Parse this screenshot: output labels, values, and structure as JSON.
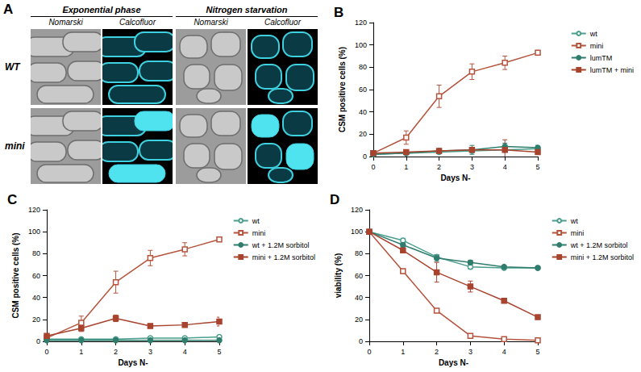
{
  "panel_a": {
    "title": "A",
    "conditions": [
      "Exponential phase",
      "Nitrogen starvation"
    ],
    "channels": [
      "Nomarski",
      "Calcofluor"
    ],
    "strains": [
      "WT",
      "mini"
    ]
  },
  "chart_data": [
    {
      "type": "line",
      "title": "B",
      "x": [
        0,
        1,
        2,
        3,
        4,
        5
      ],
      "xlabel": "Days N-",
      "ylabel": "CSM positive cells (%)",
      "xlim": [
        0,
        5
      ],
      "xticks": [
        0,
        1,
        2,
        3,
        4,
        5
      ],
      "ylim": [
        0,
        120
      ],
      "yticks": [
        0,
        20,
        40,
        60,
        80,
        100,
        120
      ],
      "grid": false,
      "legend": "right",
      "series": [
        {
          "name": "wt",
          "color": "#4a9e8e",
          "marker": "open_circle",
          "values": [
            2,
            3,
            4,
            5,
            6,
            7
          ],
          "errors": [
            1,
            1,
            1,
            1,
            2,
            2
          ]
        },
        {
          "name": "mini",
          "color": "#b5533c",
          "marker": "open_square",
          "values": [
            3,
            17,
            54,
            76,
            84,
            93
          ],
          "errors": [
            2,
            6,
            10,
            7,
            6,
            2
          ]
        },
        {
          "name": "lumTM",
          "color": "#2f7d6d",
          "marker": "circle",
          "values": [
            2,
            3,
            5,
            6,
            9,
            8
          ],
          "errors": [
            1,
            1,
            2,
            4,
            3,
            2
          ]
        },
        {
          "name": "lumTM + mini",
          "color": "#a8432e",
          "marker": "square",
          "values": [
            3,
            4,
            5,
            6,
            6,
            4
          ],
          "errors": [
            1,
            1,
            1,
            2,
            9,
            2
          ]
        }
      ]
    },
    {
      "type": "line",
      "title": "C",
      "x": [
        0,
        1,
        2,
        3,
        4,
        5
      ],
      "xlabel": "Days N-",
      "ylabel": "CSM positive cells (%)",
      "xlim": [
        0,
        5
      ],
      "xticks": [
        0,
        1,
        2,
        3,
        4,
        5
      ],
      "ylim": [
        0,
        120
      ],
      "yticks": [
        0,
        20,
        40,
        60,
        80,
        100,
        120
      ],
      "grid": false,
      "legend": "right",
      "series": [
        {
          "name": "wt",
          "color": "#4a9e8e",
          "marker": "open_circle",
          "values": [
            2,
            2,
            2,
            3,
            3,
            4
          ],
          "errors": [
            1,
            1,
            1,
            1,
            1,
            1
          ]
        },
        {
          "name": "mini",
          "color": "#b5533c",
          "marker": "open_square",
          "values": [
            3,
            17,
            54,
            76,
            84,
            93
          ],
          "errors": [
            2,
            6,
            10,
            7,
            6,
            2
          ]
        },
        {
          "name": "wt + 1.2M sorbitol",
          "color": "#2f7d6d",
          "marker": "circle",
          "values": [
            1,
            1,
            1,
            1,
            1,
            1
          ],
          "errors": [
            0,
            0,
            0,
            0,
            0,
            0
          ]
        },
        {
          "name": "mini + 1.2M sorbitol",
          "color": "#a8432e",
          "marker": "square",
          "values": [
            5,
            12,
            21,
            14,
            15,
            18
          ],
          "errors": [
            1,
            3,
            3,
            2,
            2,
            4
          ]
        }
      ]
    },
    {
      "type": "line",
      "title": "D",
      "x": [
        0,
        1,
        2,
        3,
        4,
        5
      ],
      "xlabel": "Days N-",
      "ylabel": "viability (%)",
      "xlim": [
        0,
        5
      ],
      "xticks": [
        0,
        1,
        2,
        3,
        4,
        5
      ],
      "ylim": [
        0,
        120
      ],
      "yticks": [
        0,
        20,
        40,
        60,
        80,
        100,
        120
      ],
      "grid": false,
      "legend": "right",
      "series": [
        {
          "name": "wt",
          "color": "#4a9e8e",
          "marker": "open_circle",
          "values": [
            100,
            92,
            77,
            68,
            67,
            67
          ],
          "errors": [
            1,
            2,
            2,
            2,
            1,
            1
          ]
        },
        {
          "name": "mini",
          "color": "#b5533c",
          "marker": "open_square",
          "values": [
            100,
            64,
            28,
            5,
            2,
            1
          ],
          "errors": [
            1,
            2,
            1,
            1,
            0,
            0
          ]
        },
        {
          "name": "wt + 1.2M sorbitol",
          "color": "#2f7d6d",
          "marker": "circle",
          "values": [
            100,
            88,
            76,
            72,
            68,
            67
          ],
          "errors": [
            1,
            2,
            3,
            2,
            1,
            1
          ]
        },
        {
          "name": "mini + 1.2M sorbitol",
          "color": "#a8432e",
          "marker": "square",
          "values": [
            100,
            83,
            63,
            50,
            37,
            22
          ],
          "errors": [
            1,
            2,
            9,
            5,
            2,
            1
          ]
        }
      ]
    }
  ]
}
